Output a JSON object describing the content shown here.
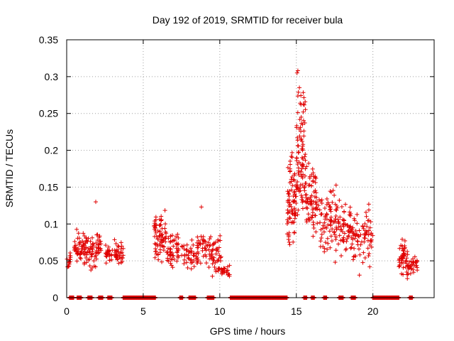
{
  "chart_data": {
    "type": "scatter",
    "title": "Day 192 of 2019, SRMTID for receiver bula",
    "xlabel": "GPS time / hours",
    "ylabel": "SRMTID / TECUs",
    "xlim": [
      0,
      24
    ],
    "ylim": [
      0,
      0.35
    ],
    "xticks": [
      0,
      5,
      10,
      15,
      20
    ],
    "yticks": [
      0,
      0.05,
      0.1,
      0.15,
      0.2,
      0.25,
      0.3,
      0.35
    ],
    "xtick_labels": [
      "0",
      "5",
      "10",
      "15",
      "20"
    ],
    "ytick_labels": [
      "0",
      "0.05",
      "0.1",
      "0.15",
      "0.2",
      "0.25",
      "0.3",
      "0.35"
    ],
    "grid": true,
    "marker": "+",
    "color": "#e00000",
    "clusters": [
      {
        "x_start": 0.0,
        "x_end": 0.25,
        "y_min": 0.035,
        "y_max": 0.068,
        "count": 14
      },
      {
        "x_start": 0.5,
        "x_end": 1.3,
        "y_min": 0.04,
        "y_max": 0.095,
        "count": 60
      },
      {
        "x_start": 1.3,
        "x_end": 2.3,
        "y_min": 0.03,
        "y_max": 0.1,
        "count": 60
      },
      {
        "x_start": 2.5,
        "x_end": 3.0,
        "y_min": 0.04,
        "y_max": 0.08,
        "count": 25
      },
      {
        "x_start": 3.1,
        "x_end": 3.7,
        "y_min": 0.038,
        "y_max": 0.085,
        "count": 35
      },
      {
        "x_start": 5.7,
        "x_end": 6.5,
        "y_min": 0.035,
        "y_max": 0.13,
        "count": 70
      },
      {
        "x_start": 6.5,
        "x_end": 7.3,
        "y_min": 0.03,
        "y_max": 0.1,
        "count": 50
      },
      {
        "x_start": 7.5,
        "x_end": 8.5,
        "y_min": 0.03,
        "y_max": 0.085,
        "count": 40
      },
      {
        "x_start": 8.5,
        "x_end": 9.4,
        "y_min": 0.025,
        "y_max": 0.1,
        "count": 45
      },
      {
        "x_start": 9.4,
        "x_end": 10.1,
        "y_min": 0.02,
        "y_max": 0.095,
        "count": 45
      },
      {
        "x_start": 10.1,
        "x_end": 10.7,
        "y_min": 0.025,
        "y_max": 0.045,
        "count": 25
      },
      {
        "x_start": 14.4,
        "x_end": 15.0,
        "y_min": 0.05,
        "y_max": 0.22,
        "count": 80
      },
      {
        "x_start": 15.0,
        "x_end": 15.6,
        "y_min": 0.07,
        "y_max": 0.31,
        "count": 90
      },
      {
        "x_start": 15.6,
        "x_end": 16.6,
        "y_min": 0.06,
        "y_max": 0.2,
        "count": 80
      },
      {
        "x_start": 16.6,
        "x_end": 17.6,
        "y_min": 0.04,
        "y_max": 0.17,
        "count": 70
      },
      {
        "x_start": 17.6,
        "x_end": 18.7,
        "y_min": 0.04,
        "y_max": 0.145,
        "count": 70
      },
      {
        "x_start": 18.7,
        "x_end": 20.0,
        "y_min": 0.028,
        "y_max": 0.135,
        "count": 70
      },
      {
        "x_start": 21.7,
        "x_end": 22.3,
        "y_min": 0.018,
        "y_max": 0.085,
        "count": 50
      },
      {
        "x_start": 22.3,
        "x_end": 22.9,
        "y_min": 0.03,
        "y_max": 0.06,
        "count": 30
      }
    ],
    "isolated_points": [
      {
        "x": 1.9,
        "y": 0.13
      },
      {
        "x": 8.8,
        "y": 0.123
      },
      {
        "x": 15.1,
        "y": 0.308
      },
      {
        "x": 15.05,
        "y": 0.305
      },
      {
        "x": 15.2,
        "y": 0.285
      },
      {
        "x": 15.3,
        "y": 0.262
      },
      {
        "x": 15.45,
        "y": 0.252
      }
    ],
    "zero_segments": [
      [
        0.2,
        0.5
      ],
      [
        0.7,
        1.0
      ],
      [
        1.4,
        1.7
      ],
      [
        2.1,
        2.4
      ],
      [
        2.7,
        3.0
      ],
      [
        3.7,
        5.8
      ],
      [
        7.4,
        7.6
      ],
      [
        8.0,
        8.4
      ],
      [
        9.2,
        9.6
      ],
      [
        10.7,
        14.4
      ],
      [
        15.5,
        15.7
      ],
      [
        16.0,
        16.2
      ],
      [
        16.8,
        17.0
      ],
      [
        17.8,
        18.1
      ],
      [
        18.6,
        18.9
      ],
      [
        20.0,
        21.7
      ],
      [
        22.4,
        22.6
      ]
    ]
  }
}
